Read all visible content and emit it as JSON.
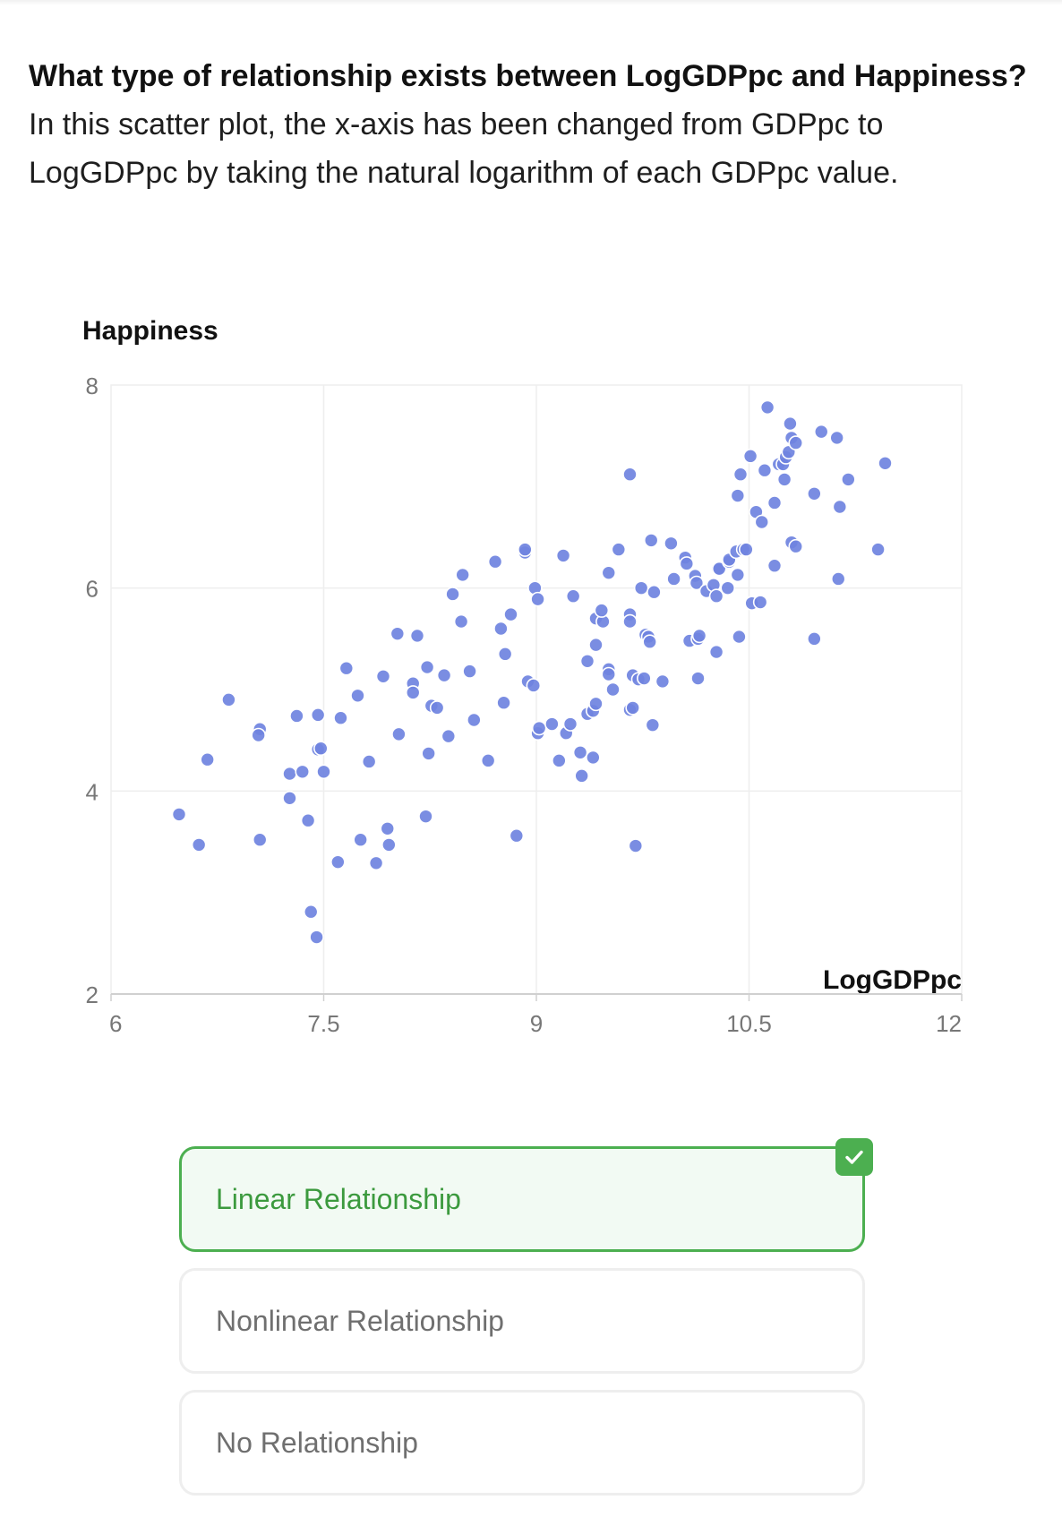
{
  "question": {
    "bold": "What type of relationship exists between LogGDPpc and Happiness?",
    "rest": " In this scatter plot, the x-axis has been changed from GDPpc to LogGDPpc by taking the natural logarithm of each GDPpc value."
  },
  "chart_data": {
    "type": "scatter",
    "ylabel": "Happiness",
    "xlabel": "LogGDPpc",
    "xlim": [
      6,
      12
    ],
    "ylim": [
      2,
      8
    ],
    "xticks": [
      "6",
      "7.5",
      "9",
      "10.5",
      "12"
    ],
    "yticks": [
      "8",
      "6",
      "4",
      "2"
    ],
    "grid": true,
    "point_color": "#6f83e0",
    "points": [
      [
        6.48,
        3.77
      ],
      [
        6.62,
        3.47
      ],
      [
        6.68,
        4.31
      ],
      [
        6.83,
        4.9
      ],
      [
        7.05,
        4.61
      ],
      [
        7.04,
        4.55
      ],
      [
        7.05,
        3.52
      ],
      [
        7.26,
        4.17
      ],
      [
        7.26,
        3.93
      ],
      [
        7.31,
        4.74
      ],
      [
        7.35,
        4.19
      ],
      [
        7.39,
        3.71
      ],
      [
        7.41,
        2.81
      ],
      [
        7.45,
        2.56
      ],
      [
        7.46,
        4.41
      ],
      [
        7.48,
        4.42
      ],
      [
        7.46,
        4.75
      ],
      [
        7.5,
        4.19
      ],
      [
        7.6,
        3.3
      ],
      [
        7.62,
        4.72
      ],
      [
        7.66,
        5.21
      ],
      [
        7.74,
        4.94
      ],
      [
        7.76,
        3.52
      ],
      [
        7.82,
        4.29
      ],
      [
        7.87,
        3.29
      ],
      [
        7.92,
        5.13
      ],
      [
        7.95,
        3.63
      ],
      [
        7.96,
        3.47
      ],
      [
        8.03,
        4.56
      ],
      [
        8.02,
        5.55
      ],
      [
        8.13,
        5.06
      ],
      [
        8.13,
        4.97
      ],
      [
        8.16,
        5.53
      ],
      [
        8.23,
        5.22
      ],
      [
        8.24,
        4.37
      ],
      [
        8.22,
        3.75
      ],
      [
        8.26,
        4.84
      ],
      [
        8.3,
        4.82
      ],
      [
        8.35,
        5.14
      ],
      [
        8.38,
        4.54
      ],
      [
        8.41,
        5.94
      ],
      [
        8.47,
        5.67
      ],
      [
        8.48,
        6.13
      ],
      [
        8.53,
        5.18
      ],
      [
        8.56,
        4.7
      ],
      [
        8.66,
        4.3
      ],
      [
        8.71,
        6.26
      ],
      [
        8.75,
        5.6
      ],
      [
        8.77,
        4.87
      ],
      [
        8.78,
        5.35
      ],
      [
        8.82,
        5.74
      ],
      [
        8.86,
        3.56
      ],
      [
        8.92,
        6.35
      ],
      [
        8.92,
        6.38
      ],
      [
        8.94,
        5.08
      ],
      [
        8.98,
        5.04
      ],
      [
        8.99,
        6.0
      ],
      [
        9.01,
        5.89
      ],
      [
        9.01,
        4.57
      ],
      [
        9.02,
        4.62
      ],
      [
        9.11,
        4.66
      ],
      [
        9.16,
        4.3
      ],
      [
        9.19,
        6.32
      ],
      [
        9.21,
        4.57
      ],
      [
        9.24,
        4.66
      ],
      [
        9.26,
        5.92
      ],
      [
        9.31,
        4.38
      ],
      [
        9.32,
        4.15
      ],
      [
        9.36,
        4.76
      ],
      [
        9.36,
        5.28
      ],
      [
        9.4,
        4.79
      ],
      [
        9.4,
        4.33
      ],
      [
        9.42,
        5.44
      ],
      [
        9.42,
        4.86
      ],
      [
        9.42,
        5.7
      ],
      [
        9.47,
        5.67
      ],
      [
        9.46,
        5.78
      ],
      [
        9.51,
        6.15
      ],
      [
        9.51,
        5.2
      ],
      [
        9.51,
        5.15
      ],
      [
        9.54,
        5.0
      ],
      [
        9.58,
        6.38
      ],
      [
        9.66,
        5.74
      ],
      [
        9.66,
        4.8
      ],
      [
        9.66,
        7.12
      ],
      [
        9.66,
        5.67
      ],
      [
        9.68,
        4.82
      ],
      [
        9.68,
        5.14
      ],
      [
        9.7,
        3.46
      ],
      [
        9.72,
        5.1
      ],
      [
        9.74,
        6.0
      ],
      [
        9.76,
        5.11
      ],
      [
        9.77,
        5.54
      ],
      [
        9.79,
        5.52
      ],
      [
        9.8,
        5.47
      ],
      [
        9.81,
        6.47
      ],
      [
        9.82,
        4.65
      ],
      [
        9.83,
        5.96
      ],
      [
        9.89,
        5.08
      ],
      [
        9.95,
        6.44
      ],
      [
        9.97,
        6.09
      ],
      [
        10.05,
        6.3
      ],
      [
        10.06,
        6.24
      ],
      [
        10.08,
        5.48
      ],
      [
        10.12,
        6.12
      ],
      [
        10.13,
        6.05
      ],
      [
        10.14,
        5.5
      ],
      [
        10.15,
        5.53
      ],
      [
        10.14,
        5.11
      ],
      [
        10.2,
        5.97
      ],
      [
        10.25,
        6.03
      ],
      [
        10.27,
        5.92
      ],
      [
        10.27,
        5.37
      ],
      [
        10.28,
        6.19
      ],
      [
        10.29,
        6.19
      ],
      [
        10.35,
        6.0
      ],
      [
        10.36,
        6.26
      ],
      [
        10.36,
        6.28
      ],
      [
        10.41,
        6.36
      ],
      [
        10.42,
        6.13
      ],
      [
        10.42,
        6.91
      ],
      [
        10.44,
        7.12
      ],
      [
        10.43,
        5.52
      ],
      [
        10.46,
        6.38
      ],
      [
        10.48,
        6.38
      ],
      [
        10.51,
        7.3
      ],
      [
        10.52,
        5.85
      ],
      [
        10.55,
        6.75
      ],
      [
        10.58,
        5.86
      ],
      [
        10.59,
        6.65
      ],
      [
        10.61,
        7.16
      ],
      [
        10.63,
        7.78
      ],
      [
        10.68,
        6.84
      ],
      [
        10.68,
        6.22
      ],
      [
        10.71,
        7.22
      ],
      [
        10.74,
        7.22
      ],
      [
        10.75,
        7.07
      ],
      [
        10.76,
        7.29
      ],
      [
        10.78,
        7.34
      ],
      [
        10.79,
        7.62
      ],
      [
        10.8,
        7.48
      ],
      [
        10.8,
        6.45
      ],
      [
        10.83,
        6.41
      ],
      [
        10.83,
        7.43
      ],
      [
        10.96,
        6.93
      ],
      [
        10.96,
        5.5
      ],
      [
        11.01,
        7.54
      ],
      [
        11.12,
        7.48
      ],
      [
        11.14,
        6.8
      ],
      [
        11.13,
        6.09
      ],
      [
        11.2,
        7.07
      ],
      [
        11.41,
        6.38
      ],
      [
        11.46,
        7.23
      ]
    ]
  },
  "choices": [
    {
      "label": "Linear Relationship",
      "state": "correct"
    },
    {
      "label": "Nonlinear Relationship",
      "state": ""
    },
    {
      "label": "No Relationship",
      "state": ""
    }
  ],
  "colors": {
    "correct_border": "#4caf50",
    "correct_bg": "#f2faf3",
    "correct_text": "#3c9a3e",
    "point": "#6f83e0"
  },
  "icons": {
    "correct_badge": "checkmark-icon"
  }
}
